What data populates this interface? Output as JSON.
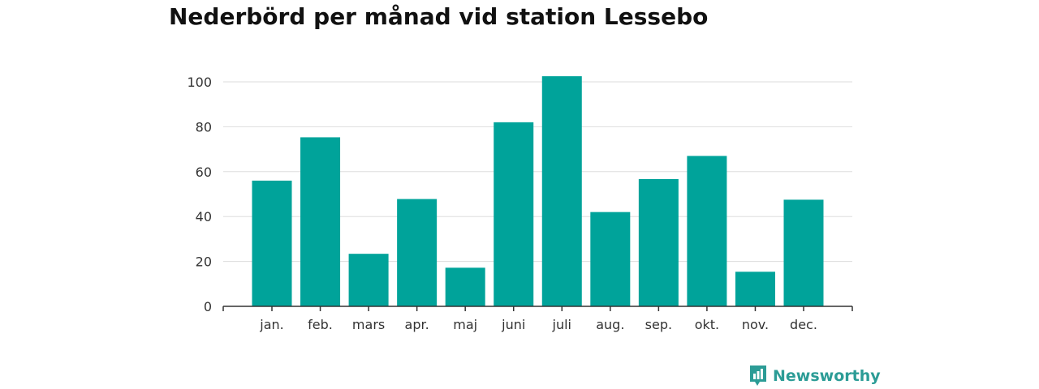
{
  "chart_data": {
    "type": "bar",
    "title": "Nederbörd per månad vid station Lessebo",
    "xlabel": "",
    "ylabel": "",
    "categories": [
      "jan.",
      "feb.",
      "mars",
      "apr.",
      "maj",
      "juni",
      "juli",
      "aug.",
      "sep.",
      "okt.",
      "nov.",
      "dec."
    ],
    "values": [
      56,
      75.3,
      23.4,
      47.8,
      17.2,
      82,
      102.5,
      42,
      56.7,
      67,
      15.4,
      47.5
    ],
    "ylim": [
      0,
      100
    ],
    "yticks": [
      0,
      20,
      40,
      60,
      80,
      100
    ],
    "grid": true,
    "bar_color": "#00a39a"
  },
  "brand": {
    "name": "Newsworthy",
    "icon": "newsworthy-logo-icon",
    "color": "#2c9c96"
  }
}
